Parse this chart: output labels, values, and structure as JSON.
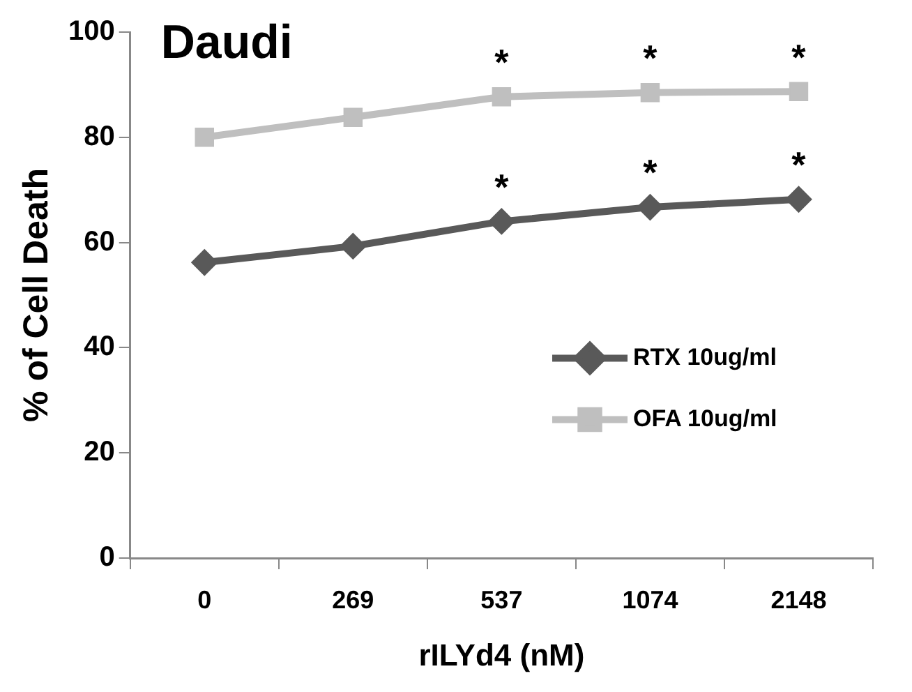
{
  "chart_data": {
    "type": "line",
    "title": "Daudi",
    "xlabel": "rILYd4 (nM)",
    "ylabel": "% of Cell Death",
    "categories": [
      "0",
      "269",
      "537",
      "1074",
      "2148"
    ],
    "series": [
      {
        "name": "RTX 10ug/ml",
        "color": "#595959",
        "marker": "diamond",
        "values": [
          56.2,
          59.3,
          64.0,
          66.7,
          68.2
        ]
      },
      {
        "name": "OFA 10ug/ml",
        "color": "#bfbfbf",
        "marker": "square",
        "values": [
          80.0,
          83.8,
          87.7,
          88.5,
          88.7
        ]
      }
    ],
    "annotations": [
      {
        "text": "*",
        "x": "537",
        "y": 64.0
      },
      {
        "text": "*",
        "x": "1074",
        "y": 66.7
      },
      {
        "text": "*",
        "x": "2148",
        "y": 68.2
      },
      {
        "text": "*",
        "x": "537",
        "y": 87.7
      },
      {
        "text": "*",
        "x": "1074",
        "y": 88.5
      },
      {
        "text": "*",
        "x": "2148",
        "y": 88.7
      }
    ],
    "ylim": [
      0,
      100
    ],
    "yticks": [
      0,
      20,
      40,
      60,
      80,
      100
    ],
    "grid": false,
    "legend": "right",
    "line_style": "solid"
  }
}
